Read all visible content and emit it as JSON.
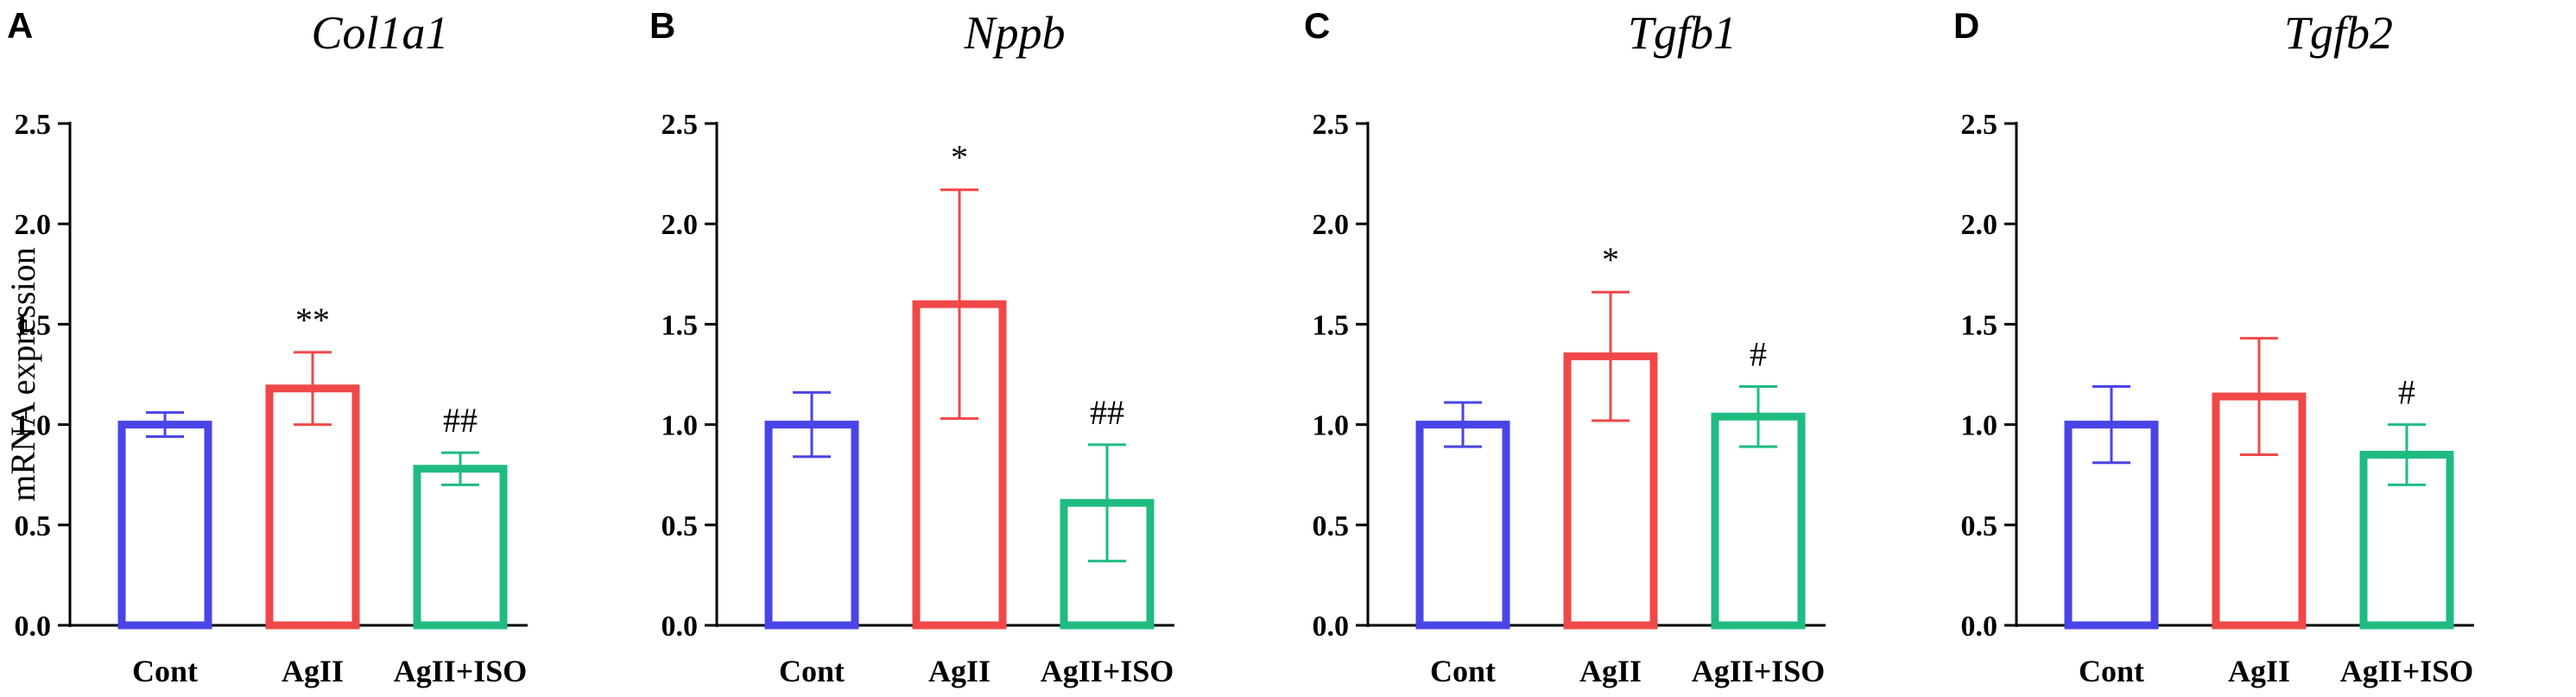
{
  "chart_data": [
    {
      "type": "bar",
      "panel": "A",
      "title": "Col1a1",
      "ylabel": "mRNA expression",
      "xlabel": "",
      "ylim": [
        0,
        2.5
      ],
      "yticks": [
        "0.0",
        "0.5",
        "1.0",
        "1.5",
        "2.0",
        "2.5"
      ],
      "categories": [
        "Cont",
        "AgII",
        "AgII+ISO"
      ],
      "values": [
        1.0,
        1.18,
        0.78
      ],
      "errors": [
        0.06,
        0.18,
        0.08
      ],
      "annotations": [
        "",
        "**",
        "##"
      ],
      "colors": [
        "#4a44e6",
        "#f04848",
        "#1fbc82"
      ]
    },
    {
      "type": "bar",
      "panel": "B",
      "title": "Nppb",
      "ylabel": "",
      "xlabel": "",
      "ylim": [
        0,
        2.5
      ],
      "yticks": [
        "0.0",
        "0.5",
        "1.0",
        "1.5",
        "2.0",
        "2.5"
      ],
      "categories": [
        "Cont",
        "AgII",
        "AgII+ISO"
      ],
      "values": [
        1.0,
        1.6,
        0.61
      ],
      "errors": [
        0.16,
        0.57,
        0.29
      ],
      "annotations": [
        "",
        "*",
        "##"
      ],
      "colors": [
        "#4a44e6",
        "#f04848",
        "#1fbc82"
      ]
    },
    {
      "type": "bar",
      "panel": "C",
      "title": "Tgfb1",
      "ylabel": "",
      "xlabel": "",
      "ylim": [
        0,
        2.5
      ],
      "yticks": [
        "0.0",
        "0.5",
        "1.0",
        "1.5",
        "2.0",
        "2.5"
      ],
      "categories": [
        "Cont",
        "AgII",
        "AgII+ISO"
      ],
      "values": [
        1.0,
        1.34,
        1.04
      ],
      "errors": [
        0.11,
        0.32,
        0.15
      ],
      "annotations": [
        "",
        "*",
        "#"
      ],
      "colors": [
        "#4a44e6",
        "#f04848",
        "#1fbc82"
      ]
    },
    {
      "type": "bar",
      "panel": "D",
      "title": "Tgfb2",
      "ylabel": "",
      "xlabel": "",
      "ylim": [
        0,
        2.5
      ],
      "yticks": [
        "0.0",
        "0.5",
        "1.0",
        "1.5",
        "2.0",
        "2.5"
      ],
      "categories": [
        "Cont",
        "AgII",
        "AgII+ISO"
      ],
      "values": [
        1.0,
        1.14,
        0.85
      ],
      "errors": [
        0.19,
        0.29,
        0.15
      ],
      "annotations": [
        "",
        "",
        "#"
      ],
      "colors": [
        "#4a44e6",
        "#f04848",
        "#1fbc82"
      ]
    }
  ]
}
